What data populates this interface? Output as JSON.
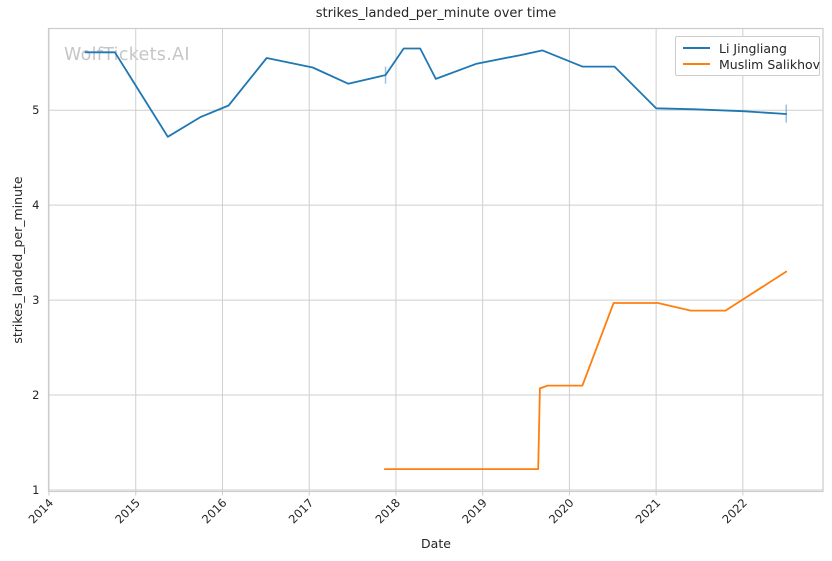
{
  "chart_data": {
    "type": "line",
    "title": "strikes_landed_per_minute over time",
    "xlabel": "Date",
    "ylabel": "strikes_landed_per_minute",
    "watermark": "WolfTickets.AI",
    "grid": true,
    "legend_position": "upper right",
    "x_axis": {
      "ticks": [
        2014,
        2015,
        2016,
        2017,
        2018,
        2019,
        2020,
        2021,
        2022
      ],
      "range": [
        2013.994,
        2022.924
      ],
      "tick_rotation": 45
    },
    "y_axis": {
      "ticks": [
        1,
        2,
        3,
        4,
        5
      ],
      "range": [
        0.984,
        5.861
      ]
    },
    "series": [
      {
        "name": "Li Jingliang",
        "color": "#1f77b4",
        "points": [
          [
            2014.42,
            5.61
          ],
          [
            2014.76,
            5.61
          ],
          [
            2015.37,
            4.72
          ],
          [
            2015.75,
            4.93
          ],
          [
            2016.07,
            5.05
          ],
          [
            2016.51,
            5.55
          ],
          [
            2017.04,
            5.45
          ],
          [
            2017.45,
            5.28
          ],
          [
            2017.88,
            5.37
          ],
          [
            2018.09,
            5.65
          ],
          [
            2018.28,
            5.65
          ],
          [
            2018.46,
            5.33
          ],
          [
            2018.93,
            5.49
          ],
          [
            2019.43,
            5.58
          ],
          [
            2019.69,
            5.63
          ],
          [
            2020.15,
            5.46
          ],
          [
            2020.52,
            5.46
          ],
          [
            2021.0,
            5.02
          ],
          [
            2021.45,
            5.01
          ],
          [
            2022.0,
            4.99
          ],
          [
            2022.5,
            4.96
          ]
        ]
      },
      {
        "name": "Muslim Salikhov",
        "color": "#ff7f0e",
        "points": [
          [
            2017.87,
            1.22
          ],
          [
            2019.64,
            1.22
          ],
          [
            2019.66,
            2.07
          ],
          [
            2019.75,
            2.1
          ],
          [
            2020.15,
            2.1
          ],
          [
            2020.51,
            2.97
          ],
          [
            2021.02,
            2.97
          ],
          [
            2021.4,
            2.89
          ],
          [
            2021.8,
            2.89
          ],
          [
            2022.5,
            3.3
          ]
        ]
      }
    ],
    "error_ticks": [
      {
        "series_index": 0,
        "x": 2017.88,
        "y_low": 5.28,
        "y_high": 5.46
      },
      {
        "series_index": 0,
        "x": 2022.5,
        "y_low": 4.87,
        "y_high": 5.06
      }
    ],
    "colors": {
      "grid": "#cfcfcf",
      "spine": "#cccccc",
      "text": "#262626",
      "tick_mark": "#cccccc",
      "watermark": "#c6c6c6",
      "background": "#ffffff"
    }
  }
}
